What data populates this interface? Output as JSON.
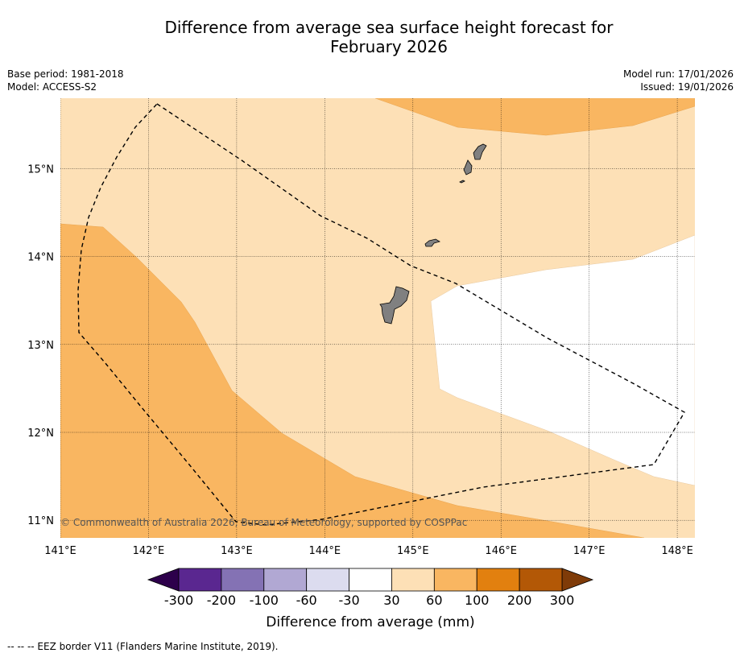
{
  "title_line1": "Difference from average sea surface height forecast for",
  "title_line2": "February 2026",
  "meta": {
    "base_period": "Base period: 1981-2018",
    "model": "Model: ACCESS-S2",
    "model_run": "Model run: 17/01/2026",
    "issued": "Issued: 19/01/2026"
  },
  "map": {
    "lon_range": [
      141,
      148.2
    ],
    "lat_range": [
      10.8,
      15.8
    ],
    "lon_ticks": [
      "141°E",
      "142°E",
      "143°E",
      "144°E",
      "145°E",
      "146°E",
      "147°E",
      "148°E"
    ],
    "lat_ticks": [
      "11°N",
      "12°N",
      "13°N",
      "14°N",
      "15°N"
    ],
    "copyright": "© Commonwealth of Australia 2026, Bureau of Meteorology, supported by COSPPac"
  },
  "colorbar": {
    "labels": [
      "-300",
      "-200",
      "-100",
      "-60",
      "-30",
      "30",
      "60",
      "100",
      "200",
      "300"
    ],
    "colors": [
      "#5a2790",
      "#8472b4",
      "#b1a8d3",
      "#dcdcef",
      "#ffffff",
      "#fde0b6",
      "#f9b661",
      "#e2800f",
      "#b35806"
    ],
    "under_color": "#2d004b",
    "over_color": "#7f3b08",
    "title": "Difference from average (mm)"
  },
  "footer": "--  --  -- EEZ border V11 (Flanders Marine Institute, 2019).",
  "colors": {
    "land": "#808080",
    "light_orange": "#fde0b6",
    "mid_orange": "#f9b661",
    "white": "#ffffff"
  }
}
